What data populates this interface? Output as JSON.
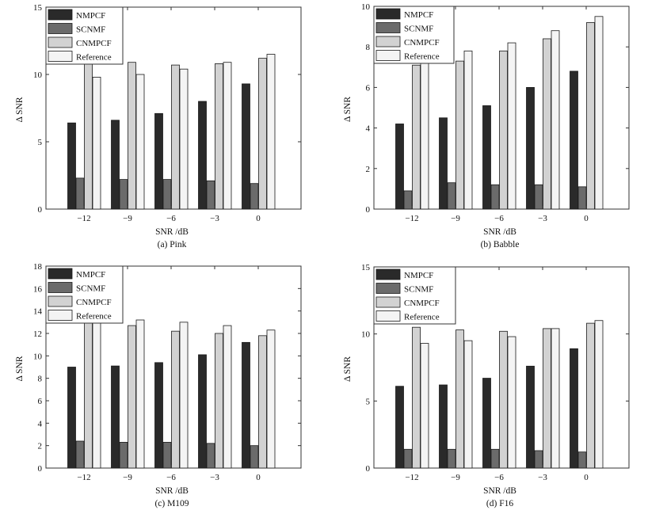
{
  "chart_data": [
    {
      "type": "bar",
      "caption": "(a) Pink",
      "xlabel": "SNR /dB",
      "ylabel": "Δ SNR",
      "categories": [
        "−12",
        "−9",
        "−6",
        "−3",
        "0"
      ],
      "ylim": [
        0,
        15
      ],
      "yticks": [
        "0",
        "5",
        "10",
        "15"
      ],
      "legend_position": "top-left",
      "series": [
        {
          "name": "NMPCF",
          "color": "#2a2a2a",
          "values": [
            6.4,
            6.6,
            7.1,
            8.0,
            9.3
          ]
        },
        {
          "name": "SCNMF",
          "color": "#6b6b6b",
          "values": [
            2.3,
            2.2,
            2.2,
            2.1,
            1.9
          ]
        },
        {
          "name": "CNMPCF",
          "color": "#d2d2d2",
          "values": [
            10.9,
            10.9,
            10.7,
            10.8,
            11.2
          ]
        },
        {
          "name": "Reference",
          "color": "#f4f4f4",
          "values": [
            9.8,
            10.0,
            10.4,
            10.9,
            11.5
          ]
        }
      ]
    },
    {
      "type": "bar",
      "caption": "(b) Babble",
      "xlabel": "SNR /dB",
      "ylabel": "Δ SNR",
      "categories": [
        "−12",
        "−9",
        "−6",
        "−3",
        "0"
      ],
      "ylim": [
        0,
        10
      ],
      "yticks": [
        "0",
        "2",
        "4",
        "6",
        "8",
        "10"
      ],
      "legend_position": "top-left",
      "series": [
        {
          "name": "NMPCF",
          "color": "#2a2a2a",
          "values": [
            4.2,
            4.5,
            5.1,
            6.0,
            6.8
          ]
        },
        {
          "name": "SCNMF",
          "color": "#6b6b6b",
          "values": [
            0.9,
            1.3,
            1.2,
            1.2,
            1.1
          ]
        },
        {
          "name": "CNMPCF",
          "color": "#d2d2d2",
          "values": [
            7.1,
            7.3,
            7.8,
            8.4,
            9.2
          ]
        },
        {
          "name": "Reference",
          "color": "#f4f4f4",
          "values": [
            7.4,
            7.8,
            8.2,
            8.8,
            9.5
          ]
        }
      ]
    },
    {
      "type": "bar",
      "caption": "(c) M109",
      "xlabel": "SNR /dB",
      "ylabel": "Δ SNR",
      "categories": [
        "−12",
        "−9",
        "−6",
        "−3",
        "0"
      ],
      "ylim": [
        0,
        18
      ],
      "yticks": [
        "0",
        "2",
        "4",
        "6",
        "8",
        "10",
        "12",
        "14",
        "16",
        "18"
      ],
      "legend_position": "top-left",
      "series": [
        {
          "name": "NMPCF",
          "color": "#2a2a2a",
          "values": [
            9.0,
            9.1,
            9.4,
            10.1,
            11.2
          ]
        },
        {
          "name": "SCNMF",
          "color": "#6b6b6b",
          "values": [
            2.4,
            2.3,
            2.3,
            2.2,
            2.0
          ]
        },
        {
          "name": "CNMPCF",
          "color": "#d2d2d2",
          "values": [
            13.0,
            12.7,
            12.2,
            12.0,
            11.8
          ]
        },
        {
          "name": "Reference",
          "color": "#f4f4f4",
          "values": [
            13.0,
            13.2,
            13.0,
            12.7,
            12.3
          ]
        }
      ]
    },
    {
      "type": "bar",
      "caption": "(d) F16",
      "xlabel": "SNR /dB",
      "ylabel": "Δ SNR",
      "categories": [
        "−12",
        "−9",
        "−6",
        "−3",
        "0"
      ],
      "ylim": [
        0,
        15
      ],
      "yticks": [
        "0",
        "5",
        "10",
        "15"
      ],
      "legend_position": "top-left",
      "series": [
        {
          "name": "NMPCF",
          "color": "#2a2a2a",
          "values": [
            6.1,
            6.2,
            6.7,
            7.6,
            8.9
          ]
        },
        {
          "name": "SCNMF",
          "color": "#6b6b6b",
          "values": [
            1.4,
            1.4,
            1.4,
            1.3,
            1.2
          ]
        },
        {
          "name": "CNMPCF",
          "color": "#d2d2d2",
          "values": [
            10.5,
            10.3,
            10.2,
            10.4,
            10.8
          ]
        },
        {
          "name": "Reference",
          "color": "#f4f4f4",
          "values": [
            9.3,
            9.5,
            9.8,
            10.4,
            11.0
          ]
        }
      ]
    }
  ]
}
